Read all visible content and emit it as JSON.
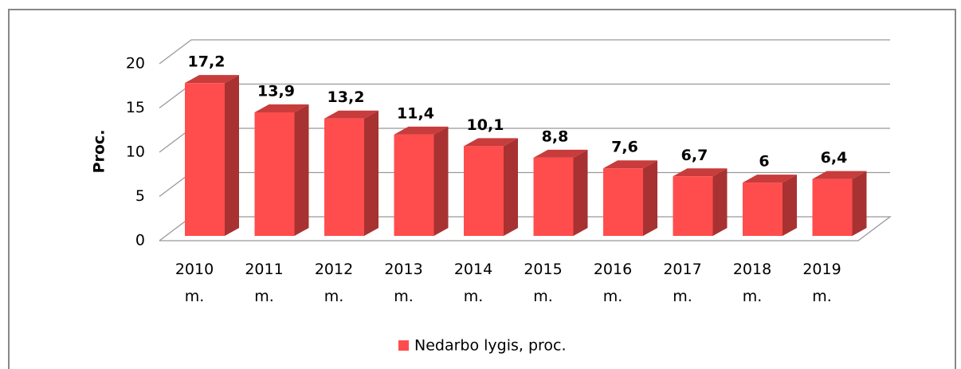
{
  "chart_data": {
    "type": "bar3d",
    "categories": [
      "2010 m.",
      "2011 m.",
      "2012 m.",
      "2013 m.",
      "2014 m.",
      "2015 m.",
      "2016 m.",
      "2017 m.",
      "2018 m.",
      "2019 m."
    ],
    "values": [
      17.2,
      13.9,
      13.2,
      11.4,
      10.1,
      8.8,
      7.6,
      6.7,
      6,
      6.4
    ],
    "value_labels": [
      "17,2",
      "13,9",
      "13,2",
      "11,4",
      "10,1",
      "8,8",
      "7,6",
      "6,7",
      "6",
      "6,4"
    ],
    "series_name": "Nedarbo lygis, proc.",
    "color": "#ff4d4d",
    "y_label": "Proc.",
    "ylim": [
      0,
      20
    ],
    "yticks": [
      0,
      5,
      10,
      15,
      20
    ],
    "grid": true,
    "legend": "bottom"
  }
}
